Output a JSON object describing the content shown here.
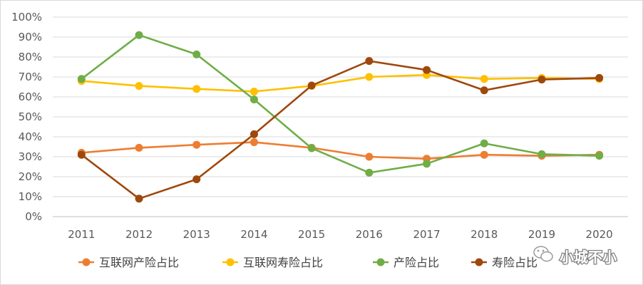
{
  "chart_data": {
    "type": "line",
    "x": [
      "2011",
      "2012",
      "2013",
      "2014",
      "2015",
      "2016",
      "2017",
      "2018",
      "2019",
      "2020"
    ],
    "ylim": [
      0,
      1.0
    ],
    "yticks": [
      "0%",
      "10%",
      "20%",
      "30%",
      "40%",
      "50%",
      "60%",
      "70%",
      "80%",
      "90%",
      "100%"
    ],
    "grid": true,
    "legend_position": "bottom",
    "series": [
      {
        "name": "互联网产险占比",
        "color": "#ED7D31",
        "values": [
          0.32,
          0.345,
          0.36,
          0.373,
          0.345,
          0.3,
          0.29,
          0.31,
          0.305,
          0.31
        ]
      },
      {
        "name": "互联网寿险占比",
        "color": "#FFC000",
        "values": [
          0.68,
          0.655,
          0.64,
          0.627,
          0.655,
          0.7,
          0.71,
          0.69,
          0.695,
          0.69
        ]
      },
      {
        "name": "产险占比",
        "color": "#70AD47",
        "values": [
          0.69,
          0.91,
          0.813,
          0.587,
          0.343,
          0.22,
          0.265,
          0.367,
          0.313,
          0.305
        ]
      },
      {
        "name": "寿险占比",
        "color": "#9E480E",
        "values": [
          0.31,
          0.09,
          0.187,
          0.413,
          0.657,
          0.78,
          0.735,
          0.633,
          0.687,
          0.695
        ]
      }
    ]
  },
  "watermark": {
    "text": "小城不小",
    "icon": "wechat-icon"
  }
}
